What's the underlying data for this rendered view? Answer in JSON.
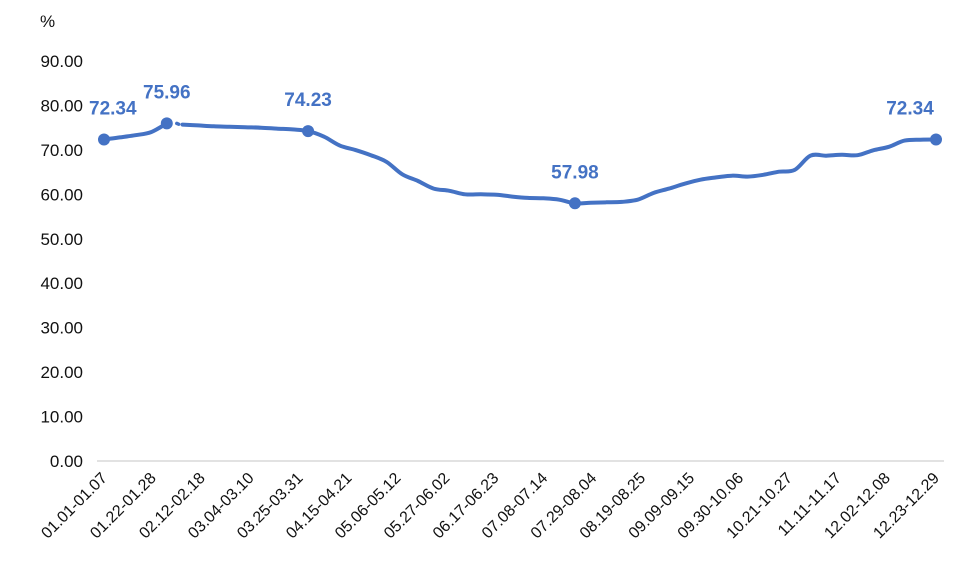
{
  "chart_data": {
    "type": "line",
    "ylabel": "%",
    "ylim": [
      0,
      90
    ],
    "yticks": [
      "0.00",
      "10.00",
      "20.00",
      "30.00",
      "40.00",
      "50.00",
      "60.00",
      "70.00",
      "80.00",
      "90.00"
    ],
    "xtick_labels": [
      "01.01-01.07",
      "01.22-01.28",
      "02.12-02.18",
      "03.04-03.10",
      "03.25-03.31",
      "04.15-04.21",
      "05.06-05.12",
      "05.27-06.02",
      "06.17-06.23",
      "07.08-07.14",
      "07.29-08.04",
      "08.19-08.25",
      "09.09-09.15",
      "09.30-10.06",
      "10.21-10.27",
      "11.11-11.17",
      "12.02-12.08",
      "12.23-12.29"
    ],
    "grid": false,
    "series_color": "#4472C4",
    "series": [
      {
        "values": [
          72.34,
          72.8,
          73.3,
          74.0,
          75.96,
          75.7,
          75.5,
          75.3,
          75.2,
          75.1,
          75.0,
          74.8,
          74.6,
          74.23,
          73.0,
          71.0,
          70.0,
          68.8,
          67.3,
          64.5,
          63.0,
          61.3,
          60.8,
          60.0,
          60.0,
          59.9,
          59.5,
          59.2,
          59.1,
          58.8,
          57.98,
          58.1,
          58.2,
          58.3,
          58.8,
          60.3,
          61.3,
          62.4,
          63.3,
          63.8,
          64.2,
          64.0,
          64.4,
          65.1,
          65.5,
          68.7,
          68.7,
          68.9,
          68.8,
          69.9,
          70.7,
          72.1,
          72.3,
          72.34
        ],
        "gap_after_index": 4,
        "labels": [
          {
            "index": 0,
            "text": "72.34"
          },
          {
            "index": 4,
            "text": "75.96"
          },
          {
            "index": 13,
            "text": "74.23"
          },
          {
            "index": 30,
            "text": "57.98"
          },
          {
            "index": 53,
            "text": "72.34"
          }
        ]
      }
    ]
  }
}
